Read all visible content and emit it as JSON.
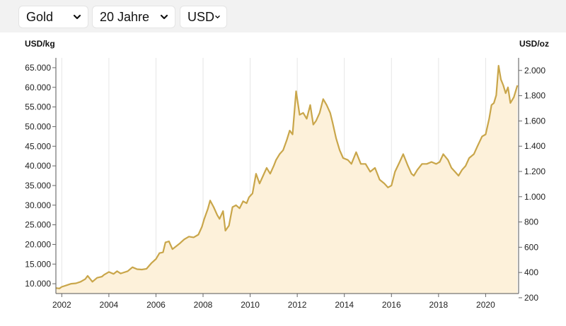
{
  "controls": {
    "metal": "Gold",
    "range": "20 Jahre",
    "currency": "USD"
  },
  "chart_data": {
    "type": "area",
    "title": "",
    "y_left_unit": "USD/kg",
    "y_right_unit": "USD/oz",
    "x_ticks": [
      "2002",
      "2004",
      "2006",
      "2008",
      "2010",
      "2012",
      "2014",
      "2016",
      "2018",
      "2020"
    ],
    "y_left_ticks": [
      "10.000",
      "15.000",
      "20.000",
      "25.000",
      "30.000",
      "35.000",
      "40.000",
      "45.000",
      "50.000",
      "55.000",
      "60.000",
      "65.000"
    ],
    "y_right_ticks": [
      "200",
      "400",
      "600",
      "800",
      "1.000",
      "1.200",
      "1.400",
      "1.600",
      "1.800",
      "2.000"
    ],
    "xlim": [
      2001.75,
      2021.4
    ],
    "ylim_left": [
      7500,
      67500
    ],
    "y_right_conversion_oz_per_kg": 32.1507,
    "grid": "vertical",
    "line_color": "#c9a64a",
    "fill_color": "#fdf1da",
    "series": [
      {
        "x": [
          2001.75,
          2001.9,
          2002.0,
          2002.2,
          2002.4,
          2002.6,
          2002.8,
          2003.0,
          2003.1,
          2003.3,
          2003.5,
          2003.7,
          2003.8,
          2004.0,
          2004.2,
          2004.35,
          2004.5,
          2004.6,
          2004.8,
          2005.0,
          2005.2,
          2005.4,
          2005.6,
          2005.8,
          2006.0,
          2006.15,
          2006.3,
          2006.4,
          2006.55,
          2006.7,
          2006.85,
          2007.0,
          2007.2,
          2007.4,
          2007.6,
          2007.8,
          2007.95,
          2008.05,
          2008.2,
          2008.3,
          2008.45,
          2008.6,
          2008.7,
          2008.85,
          2008.95,
          2009.1,
          2009.25,
          2009.4,
          2009.55,
          2009.7,
          2009.85,
          2009.95,
          2010.1,
          2010.25,
          2010.4,
          2010.55,
          2010.7,
          2010.85,
          2011.0,
          2011.1,
          2011.25,
          2011.4,
          2011.55,
          2011.68,
          2011.8,
          2011.95,
          2012.1,
          2012.25,
          2012.4,
          2012.55,
          2012.68,
          2012.8,
          2012.95,
          2013.1,
          2013.25,
          2013.4,
          2013.5,
          2013.65,
          2013.8,
          2013.95,
          2014.15,
          2014.3,
          2014.5,
          2014.7,
          2014.9,
          2015.1,
          2015.3,
          2015.5,
          2015.7,
          2015.85,
          2016.0,
          2016.15,
          2016.35,
          2016.5,
          2016.7,
          2016.85,
          2016.95,
          2017.1,
          2017.3,
          2017.5,
          2017.7,
          2017.9,
          2018.05,
          2018.2,
          2018.4,
          2018.55,
          2018.7,
          2018.85,
          2019.0,
          2019.15,
          2019.3,
          2019.5,
          2019.65,
          2019.85,
          2020.0,
          2020.15,
          2020.25,
          2020.35,
          2020.45,
          2020.55,
          2020.65,
          2020.75,
          2020.85,
          2020.95,
          2021.05,
          2021.2,
          2021.35
        ],
        "values": [
          8900,
          8800,
          9200,
          9600,
          10000,
          10100,
          10500,
          11200,
          12000,
          10500,
          11500,
          11800,
          12300,
          13000,
          12500,
          13200,
          12600,
          12800,
          13200,
          14200,
          13700,
          13600,
          13800,
          15200,
          16300,
          17800,
          18000,
          20500,
          20800,
          18800,
          19500,
          20200,
          21300,
          22000,
          21800,
          22500,
          24500,
          26500,
          29000,
          31200,
          29500,
          27500,
          26500,
          28500,
          23500,
          24800,
          29500,
          30000,
          29200,
          31000,
          30500,
          32000,
          33000,
          38000,
          35500,
          37500,
          39500,
          38000,
          40000,
          41500,
          43000,
          44000,
          46500,
          49000,
          48000,
          59000,
          53000,
          53500,
          52000,
          55500,
          50500,
          51500,
          53500,
          57000,
          55500,
          53500,
          51000,
          47000,
          44000,
          42000,
          41500,
          40500,
          43500,
          40500,
          40500,
          38500,
          39500,
          36500,
          35500,
          34500,
          35000,
          38500,
          41000,
          43000,
          40000,
          38000,
          37500,
          39000,
          40500,
          40500,
          41000,
          40500,
          41000,
          43000,
          41500,
          39500,
          38500,
          37500,
          39000,
          40000,
          42000,
          43000,
          45000,
          47500,
          48000,
          52000,
          55500,
          56000,
          58000,
          65500,
          62000,
          60500,
          58500,
          60000,
          56000,
          57500,
          60500
        ]
      }
    ]
  }
}
